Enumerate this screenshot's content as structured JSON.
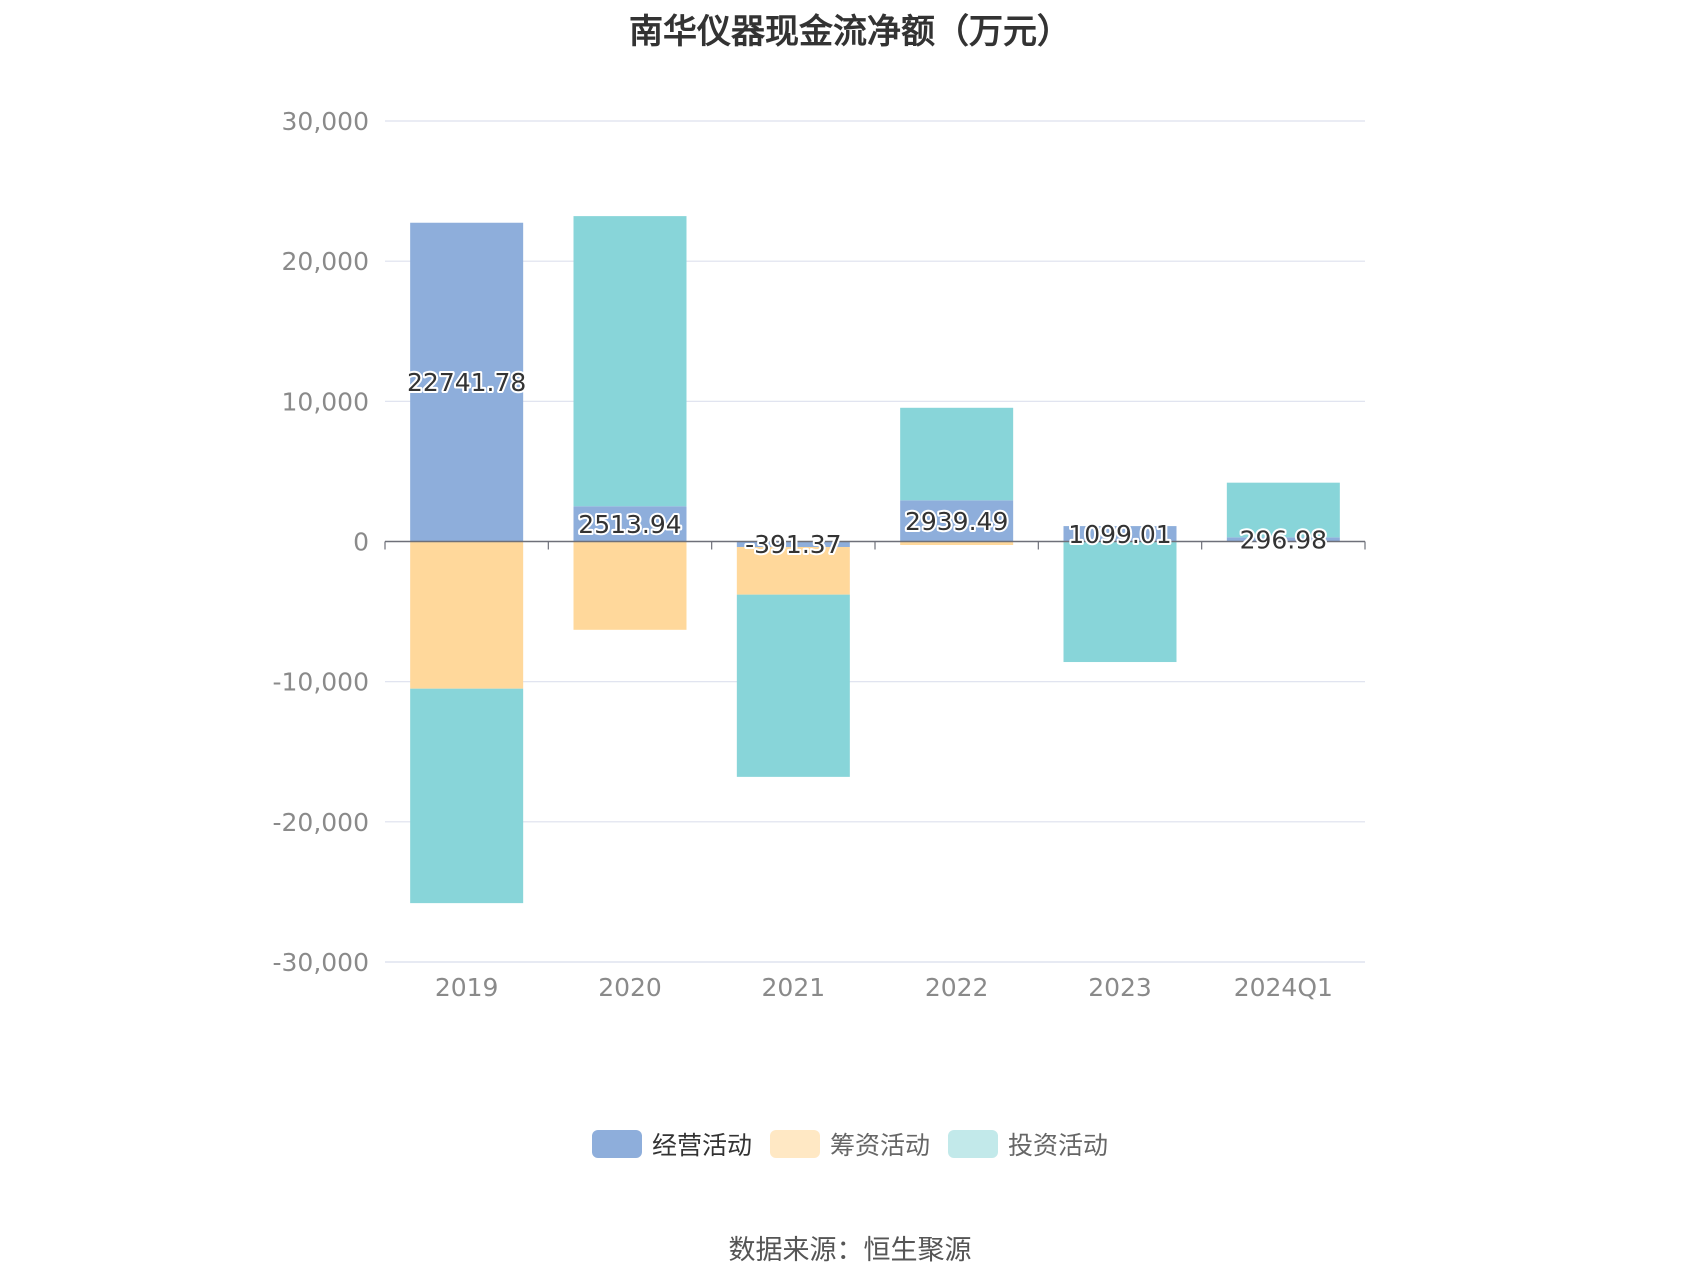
{
  "title": "南华仪器现金流净额（万元）",
  "source": "数据来源：恒生聚源",
  "colors": {
    "operating": "#8eaedb",
    "financing": "#ffd89b",
    "investing": "#88d5d9",
    "legend_financing": "#ffe8c4",
    "legend_investing": "#c2e9ea",
    "grid": "#dde1ee",
    "zero_line": "#6e7079",
    "tick_text": "#8a8a8a"
  },
  "chart_data": {
    "type": "bar",
    "stacked": true,
    "categories": [
      "2019",
      "2020",
      "2021",
      "2022",
      "2023",
      "2024Q1"
    ],
    "ylim": [
      -30000,
      30000
    ],
    "yticks": [
      30000,
      20000,
      10000,
      0,
      -10000,
      -20000,
      -30000
    ],
    "ytick_labels": [
      "30,000",
      "20,000",
      "10,000",
      "0",
      "-10,000",
      "-20,000",
      "-30,000"
    ],
    "series": [
      {
        "name": "经营活动",
        "key": "operating",
        "values": [
          22741.78,
          2513.94,
          -391.37,
          2939.49,
          1099.01,
          296.98
        ],
        "labels": [
          "22741.78",
          "2513.94",
          "-391.37",
          "2939.49",
          "1099.01",
          "296.98"
        ]
      },
      {
        "name": "筹资活动",
        "key": "financing",
        "values": [
          -10500,
          -6300,
          -3400,
          -250,
          0,
          0
        ]
      },
      {
        "name": "投资活动",
        "key": "investing",
        "values": [
          -15300,
          20700,
          -13000,
          6600,
          -8600,
          3900
        ]
      }
    ]
  }
}
